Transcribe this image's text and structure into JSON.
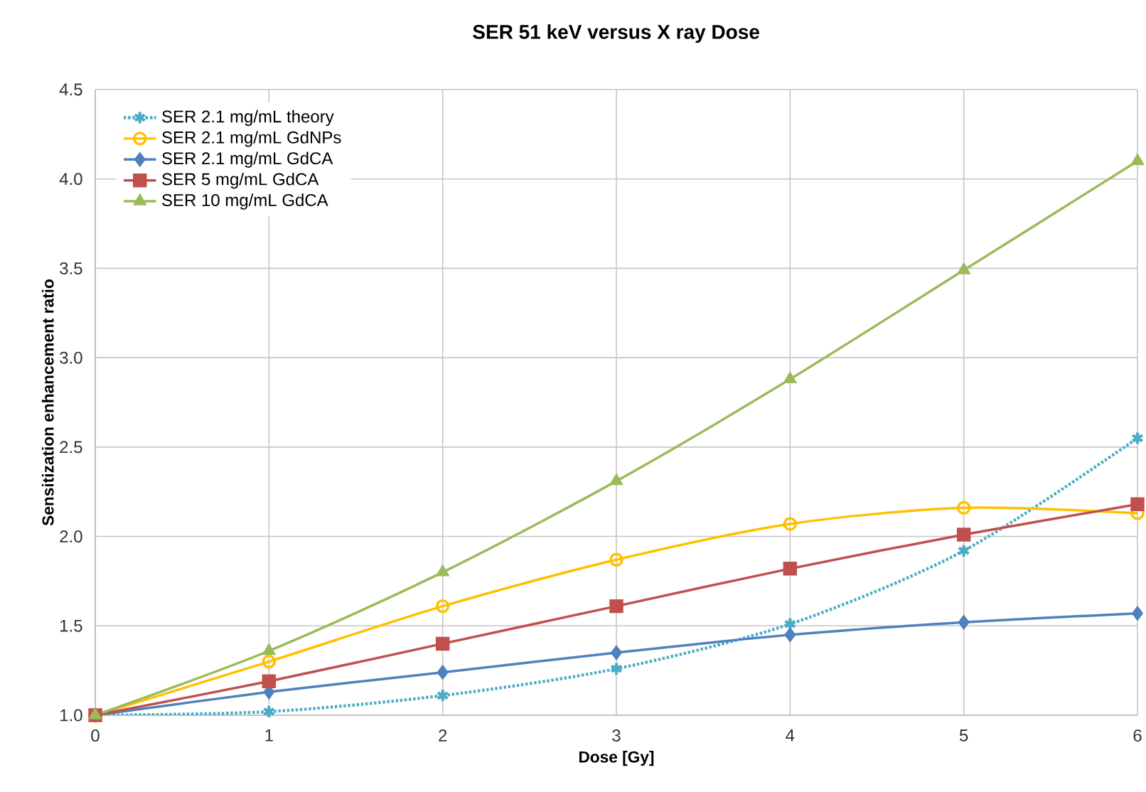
{
  "chart_data": {
    "type": "line",
    "title": "SER 51 keV versus X ray Dose",
    "xlabel": "Dose [Gy]",
    "ylabel": "Sensitization enhancement ratio",
    "x": [
      0,
      1,
      2,
      3,
      4,
      5,
      6
    ],
    "series": [
      {
        "name": "SER 2.1 mg/mL theory",
        "color": "#4bacc6",
        "marker": "cross",
        "line_style": "dotted",
        "values": [
          1.0,
          1.02,
          1.11,
          1.26,
          1.51,
          1.92,
          2.55
        ]
      },
      {
        "name": "SER 2.1 mg/mL GdNPs",
        "color": "#ffc000",
        "marker": "circle",
        "line_style": "solid",
        "values": [
          1.0,
          1.3,
          1.61,
          1.87,
          2.07,
          2.16,
          2.13
        ]
      },
      {
        "name": "SER 2.1 mg/mL GdCA",
        "color": "#4f81bd",
        "marker": "diamond",
        "line_style": "solid",
        "values": [
          1.0,
          1.13,
          1.24,
          1.35,
          1.45,
          1.52,
          1.57
        ]
      },
      {
        "name": "SER 5 mg/mL GdCA",
        "color": "#c0504d",
        "marker": "square",
        "line_style": "solid",
        "values": [
          1.0,
          1.19,
          1.4,
          1.61,
          1.82,
          2.01,
          2.18
        ]
      },
      {
        "name": "SER 10 mg/mL GdCA",
        "color": "#9bbb59",
        "marker": "triangle",
        "line_style": "solid",
        "values": [
          1.0,
          1.36,
          1.8,
          2.31,
          2.88,
          3.49,
          4.1
        ]
      }
    ],
    "xlim": [
      0,
      6
    ],
    "xticks": [
      0,
      1,
      2,
      3,
      4,
      5,
      6
    ],
    "ylim": [
      1,
      4.5
    ],
    "yticks": [
      {
        "value": 1,
        "label": "1.0"
      },
      {
        "value": 1.5,
        "label": "1.5"
      },
      {
        "value": 2,
        "label": "2.0"
      },
      {
        "value": 2.5,
        "label": "2.5"
      },
      {
        "value": 3,
        "label": "3.0"
      },
      {
        "value": 3.5,
        "label": "3.5"
      },
      {
        "value": 4,
        "label": "4.0"
      },
      {
        "value": 4.5,
        "label": "4.5"
      }
    ],
    "grid": true,
    "legend": "top left"
  }
}
